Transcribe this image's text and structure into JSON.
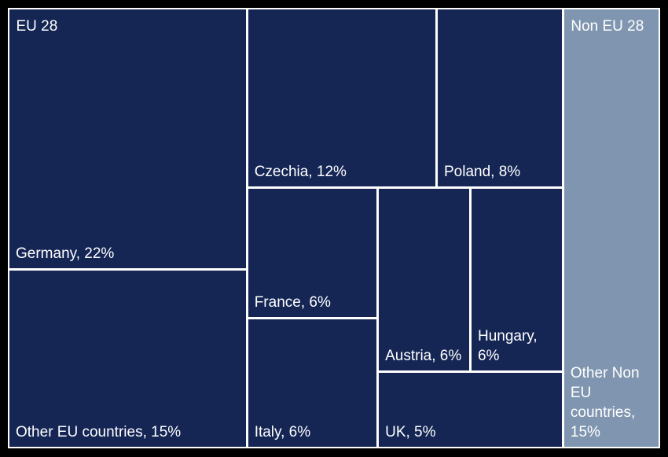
{
  "chart_data": {
    "type": "treemap",
    "groups": [
      {
        "name": "EU 28",
        "color": "#152655",
        "values": [
          22,
          15,
          12,
          8,
          6,
          6,
          6,
          6,
          5
        ],
        "value_labels": [
          "Germany, 22%",
          "Other EU countries, 15%",
          "Czechia, 12%",
          "Poland, 8%",
          "France, 6%",
          "Italy, 6%",
          "Austria, 6%",
          "Hungary, 6%",
          "UK, 5%"
        ]
      },
      {
        "name": "Non EU 28",
        "color": "#8096b0",
        "values": [
          15
        ],
        "value_labels": [
          "Other Non EU countries, 15%"
        ]
      }
    ]
  }
}
